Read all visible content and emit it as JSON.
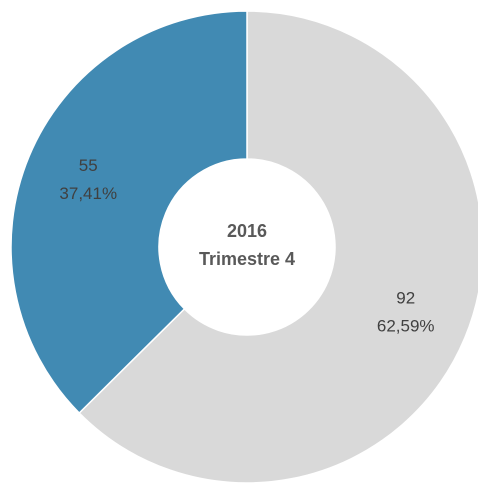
{
  "chart_data": {
    "type": "donut",
    "center_text": [
      "2016",
      "Trimestre 4"
    ],
    "categories": [
      null,
      null
    ],
    "values": [
      92,
      55
    ],
    "percentages": [
      62.59,
      37.41
    ],
    "percentage_labels": [
      "62,59%",
      "37,41%"
    ],
    "colors": [
      "#d9d9d9",
      "#418ab3"
    ],
    "start_angle": 0,
    "direction": "clockwise"
  }
}
